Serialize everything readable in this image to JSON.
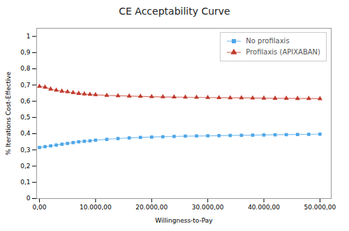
{
  "chart_data": {
    "type": "line",
    "title": "CE Acceptability Curve",
    "xlabel": "Willingness-to-Pay",
    "ylabel": "% Iterations Cost-Effective",
    "x": [
      0,
      1000,
      2000,
      3000,
      4000,
      5000,
      6000,
      7000,
      8000,
      9000,
      10000,
      12000,
      14000,
      16000,
      18000,
      20000,
      22000,
      24000,
      26000,
      28000,
      30000,
      32000,
      34000,
      36000,
      38000,
      40000,
      42000,
      44000,
      46000,
      48000,
      50000
    ],
    "series": [
      {
        "name": "No profilaxis",
        "color": "#4DA6E8",
        "marker": "square",
        "values": [
          0.315,
          0.32,
          0.325,
          0.33,
          0.335,
          0.34,
          0.345,
          0.35,
          0.353,
          0.356,
          0.36,
          0.365,
          0.37,
          0.374,
          0.377,
          0.379,
          0.381,
          0.383,
          0.385,
          0.386,
          0.387,
          0.388,
          0.389,
          0.39,
          0.391,
          0.392,
          0.393,
          0.394,
          0.395,
          0.396,
          0.397
        ]
      },
      {
        "name": "Profilaxis (APIXABAN)",
        "color": "#C0392B",
        "marker": "triangle",
        "values": [
          0.692,
          0.687,
          0.675,
          0.668,
          0.662,
          0.658,
          0.653,
          0.648,
          0.645,
          0.642,
          0.64,
          0.636,
          0.634,
          0.632,
          0.63,
          0.628,
          0.627,
          0.626,
          0.625,
          0.624,
          0.623,
          0.622,
          0.621,
          0.621,
          0.62,
          0.619,
          0.618,
          0.618,
          0.617,
          0.617,
          0.616
        ]
      }
    ],
    "xlim": [
      -500,
      52000
    ],
    "xticks": [
      {
        "value": 0,
        "label": "0,00"
      },
      {
        "value": 10000,
        "label": "10.000,00"
      },
      {
        "value": 20000,
        "label": "20.000,00"
      },
      {
        "value": 30000,
        "label": "30.000,00"
      },
      {
        "value": 40000,
        "label": "40.000,00"
      },
      {
        "value": 50000,
        "label": "50.000,00"
      }
    ],
    "ylim": [
      0,
      1.05
    ],
    "yticks": [
      0,
      {
        "value": 0.1,
        "label": "0,1"
      },
      {
        "value": 0.2,
        "label": "0,2"
      },
      {
        "value": 0.3,
        "label": "0,3"
      },
      {
        "value": 0.4,
        "label": "0,4"
      },
      {
        "value": 0.5,
        "label": "0,5"
      },
      {
        "value": 0.6,
        "label": "0,6"
      },
      {
        "value": 0.7,
        "label": "0,7"
      },
      {
        "value": 0.8,
        "label": "0,8"
      },
      {
        "value": 0.9,
        "label": "0,9"
      },
      1
    ],
    "grid": false,
    "legend": "upper right"
  }
}
